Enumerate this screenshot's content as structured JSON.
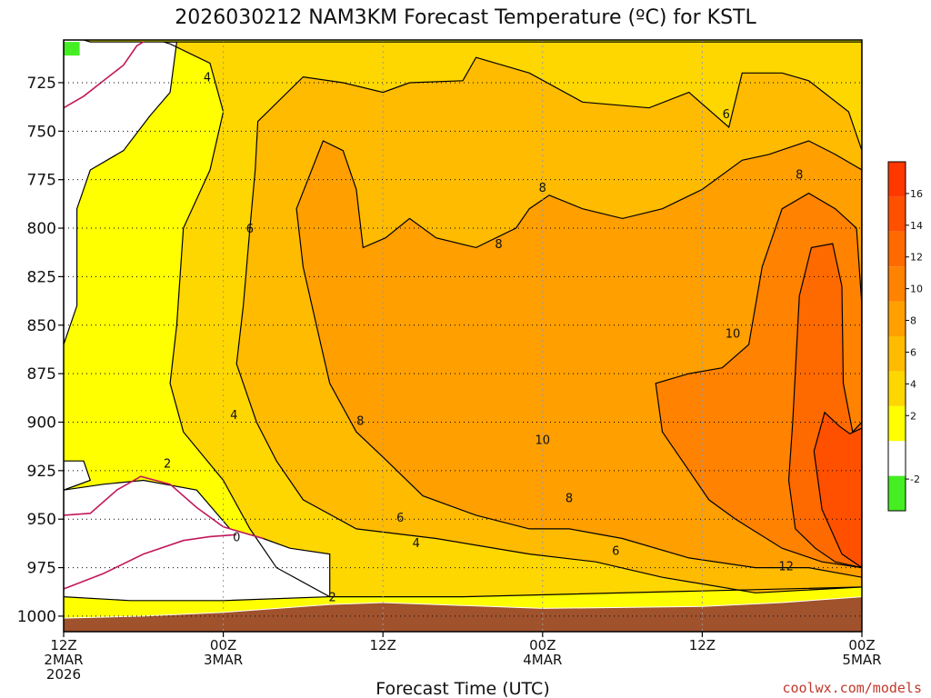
{
  "chart_data": {
    "type": "heatmap",
    "title": "2026030212 NAM3KM Forecast Temperature (ºC) for KSTL",
    "xlabel": "Forecast Time (UTC)",
    "ylabel": "",
    "x_ticks": [
      {
        "hour": 0,
        "lines": [
          "12Z",
          "2MAR",
          "2026"
        ]
      },
      {
        "hour": 12,
        "lines": [
          "00Z",
          "3MAR"
        ]
      },
      {
        "hour": 24,
        "lines": [
          "12Z"
        ]
      },
      {
        "hour": 36,
        "lines": [
          "00Z",
          "4MAR"
        ]
      },
      {
        "hour": 48,
        "lines": [
          "12Z"
        ]
      },
      {
        "hour": 60,
        "lines": [
          "00Z",
          "5MAR"
        ]
      }
    ],
    "xlim": [
      0,
      60
    ],
    "y_ticks": [
      725,
      750,
      775,
      800,
      825,
      850,
      875,
      900,
      925,
      950,
      975,
      1000
    ],
    "ylim": [
      1008,
      703
    ],
    "y_axis": "pressure (hPa), inverted",
    "grid": true,
    "colorbar": {
      "ticks": [
        -2,
        2,
        4,
        6,
        8,
        10,
        12,
        14,
        16
      ],
      "bins": [
        {
          "from": -4,
          "to": 0,
          "color": "#44ee22"
        },
        {
          "from": 0,
          "to": 2,
          "color": "#ffffff"
        },
        {
          "from": 2,
          "to": 4,
          "color": "#ffff00"
        },
        {
          "from": 4,
          "to": 6,
          "color": "#ffd700"
        },
        {
          "from": 6,
          "to": 8,
          "color": "#ffbb00"
        },
        {
          "from": 8,
          "to": 10,
          "color": "#ff9f00"
        },
        {
          "from": 10,
          "to": 12,
          "color": "#ff8200"
        },
        {
          "from": 12,
          "to": 14,
          "color": "#ff6a00"
        },
        {
          "from": 14,
          "to": 16,
          "color": "#ff5000"
        },
        {
          "from": 16,
          "to": 18,
          "color": "#ff3800"
        }
      ]
    },
    "contour_labels": [
      {
        "text": "4",
        "hour": 10.8,
        "p": 722
      },
      {
        "text": "6",
        "hour": 49.8,
        "p": 741
      },
      {
        "text": "8",
        "hour": 36.0,
        "p": 779
      },
      {
        "text": "8",
        "hour": 55.3,
        "p": 772
      },
      {
        "text": "6",
        "hour": 14.0,
        "p": 800
      },
      {
        "text": "8",
        "hour": 32.7,
        "p": 808
      },
      {
        "text": "10",
        "hour": 50.3,
        "p": 854
      },
      {
        "text": "8",
        "hour": 22.3,
        "p": 899
      },
      {
        "text": "4",
        "hour": 12.8,
        "p": 896
      },
      {
        "text": "10",
        "hour": 36.0,
        "p": 909
      },
      {
        "text": "2",
        "hour": 7.8,
        "p": 921
      },
      {
        "text": "8",
        "hour": 38.0,
        "p": 939
      },
      {
        "text": "6",
        "hour": 25.3,
        "p": 949
      },
      {
        "text": "4",
        "hour": 26.5,
        "p": 962
      },
      {
        "text": "0",
        "hour": 13.0,
        "p": 959
      },
      {
        "text": "6",
        "hour": 41.5,
        "p": 966
      },
      {
        "text": "12",
        "hour": 54.3,
        "p": 974
      },
      {
        "text": "2",
        "hour": 20.2,
        "p": 990
      }
    ],
    "regions": [
      {
        "value": 4,
        "color": "#ffd700",
        "poly": [
          [
            7.5,
            704
          ],
          [
            32,
            704
          ],
          [
            60,
            704
          ],
          [
            60,
            985
          ],
          [
            30,
            990
          ],
          [
            20,
            990
          ],
          [
            16,
            975
          ],
          [
            14,
            955
          ],
          [
            12,
            930
          ],
          [
            9,
            905
          ],
          [
            8,
            880
          ],
          [
            8.5,
            850
          ],
          [
            9,
            800
          ],
          [
            11,
            770
          ],
          [
            12,
            740
          ],
          [
            11,
            715
          ],
          [
            8,
            705
          ]
        ]
      },
      {
        "value": 6,
        "color": "#ffbb00",
        "poly": [
          [
            14.6,
            745
          ],
          [
            18,
            722
          ],
          [
            21,
            725
          ],
          [
            24,
            730
          ],
          [
            26,
            725
          ],
          [
            30,
            724
          ],
          [
            31,
            712
          ],
          [
            35,
            720
          ],
          [
            39,
            735
          ],
          [
            44,
            738
          ],
          [
            47,
            730
          ],
          [
            50,
            748
          ],
          [
            51,
            720
          ],
          [
            54,
            720
          ],
          [
            56,
            724
          ],
          [
            59,
            740
          ],
          [
            60,
            760
          ],
          [
            60,
            985
          ],
          [
            52,
            988
          ],
          [
            45,
            980
          ],
          [
            40,
            972
          ],
          [
            35,
            968
          ],
          [
            28,
            960
          ],
          [
            22,
            955
          ],
          [
            18,
            940
          ],
          [
            16,
            920
          ],
          [
            14.5,
            900
          ],
          [
            13,
            870
          ],
          [
            13.5,
            840
          ],
          [
            14,
            800
          ],
          [
            14.4,
            770
          ]
        ]
      },
      {
        "value": 8,
        "color": "#ff9f00",
        "poly": [
          [
            17.5,
            790
          ],
          [
            19.5,
            755
          ],
          [
            21,
            760
          ],
          [
            22,
            780
          ],
          [
            22.5,
            810
          ],
          [
            24.2,
            805
          ],
          [
            26,
            795
          ],
          [
            28,
            805
          ],
          [
            31,
            810
          ],
          [
            34,
            800
          ],
          [
            35,
            790
          ],
          [
            36.5,
            783
          ],
          [
            39,
            790
          ],
          [
            42,
            795
          ],
          [
            45,
            790
          ],
          [
            48,
            780
          ],
          [
            51,
            765
          ],
          [
            53,
            762
          ],
          [
            56,
            755
          ],
          [
            58,
            762
          ],
          [
            60,
            770
          ],
          [
            60,
            980
          ],
          [
            56,
            975
          ],
          [
            52,
            975
          ],
          [
            47,
            970
          ],
          [
            42,
            960
          ],
          [
            38,
            955
          ],
          [
            35,
            955
          ],
          [
            31,
            948
          ],
          [
            27,
            938
          ],
          [
            24,
            918
          ],
          [
            22,
            905
          ],
          [
            20,
            880
          ],
          [
            19,
            850
          ],
          [
            18,
            820
          ]
        ]
      },
      {
        "value": 10,
        "color": "#ff8200",
        "poly": [
          [
            51.5,
            860
          ],
          [
            52.5,
            820
          ],
          [
            54,
            790
          ],
          [
            56,
            782
          ],
          [
            58,
            790
          ],
          [
            59.6,
            800
          ],
          [
            60,
            840
          ],
          [
            60,
            975
          ],
          [
            57,
            972
          ],
          [
            54,
            965
          ],
          [
            50.5,
            950
          ],
          [
            48.5,
            940
          ],
          [
            47,
            925
          ],
          [
            45,
            905
          ],
          [
            44.5,
            880
          ],
          [
            47,
            875
          ],
          [
            49.5,
            872
          ]
        ]
      },
      {
        "value": 12,
        "color": "#ff6a00",
        "poly": [
          [
            55.3,
            835
          ],
          [
            56.2,
            810
          ],
          [
            57.8,
            808
          ],
          [
            58.5,
            830
          ],
          [
            58.6,
            880
          ],
          [
            59.3,
            905
          ],
          [
            60,
            900
          ],
          [
            60,
            975
          ],
          [
            58,
            972
          ],
          [
            56.5,
            965
          ],
          [
            55,
            955
          ],
          [
            54.5,
            930
          ],
          [
            54.8,
            900
          ]
        ]
      },
      {
        "value": 14,
        "color": "#ff5000",
        "poly": [
          [
            56.4,
            915
          ],
          [
            57.2,
            895
          ],
          [
            58.3,
            902
          ],
          [
            59.1,
            906
          ],
          [
            60,
            903
          ],
          [
            60,
            975
          ],
          [
            58.5,
            968
          ],
          [
            57,
            945
          ]
        ]
      }
    ],
    "cold_regions": [
      {
        "value": 0,
        "color": "#ffffff",
        "poly": [
          [
            0,
            935
          ],
          [
            3,
            932
          ],
          [
            6,
            930
          ],
          [
            10,
            935
          ],
          [
            12.5,
            955
          ],
          [
            15,
            960
          ],
          [
            17,
            965
          ],
          [
            20,
            968
          ],
          [
            20,
            990
          ],
          [
            12,
            992
          ],
          [
            5,
            992
          ],
          [
            0,
            990
          ]
        ]
      },
      {
        "value": 0,
        "color": "#ffffff",
        "poly": [
          [
            0,
            700
          ],
          [
            2,
            704
          ],
          [
            8.5,
            704
          ],
          [
            8,
            730
          ],
          [
            6.5,
            742
          ],
          [
            4.5,
            760
          ],
          [
            2,
            770
          ],
          [
            1,
            790
          ],
          [
            1,
            840
          ],
          [
            0,
            860
          ]
        ]
      },
      {
        "value": 0,
        "color": "#ffffff",
        "poly": [
          [
            0,
            920
          ],
          [
            1.5,
            920
          ],
          [
            2,
            930
          ],
          [
            0,
            935
          ]
        ]
      }
    ],
    "cold_patches": [
      {
        "value": -2,
        "color": "#44ee22",
        "poly": [
          [
            0,
            704
          ],
          [
            1.2,
            704
          ],
          [
            1.2,
            711
          ],
          [
            0,
            711
          ]
        ]
      }
    ],
    "zero_isotherm_paths": [
      [
        [
          0,
          738
        ],
        [
          1.5,
          732
        ],
        [
          3,
          724
        ],
        [
          4.5,
          716
        ],
        [
          5.5,
          706
        ],
        [
          6,
          704
        ]
      ],
      [
        [
          0,
          948
        ],
        [
          2,
          947
        ],
        [
          4,
          935
        ],
        [
          5.8,
          928
        ],
        [
          8,
          932
        ],
        [
          10,
          944
        ],
        [
          12,
          954
        ],
        [
          15,
          960
        ]
      ],
      [
        [
          0,
          986
        ],
        [
          3,
          978
        ],
        [
          6,
          968
        ],
        [
          9,
          961
        ],
        [
          11,
          959
        ],
        [
          13,
          958
        ]
      ]
    ],
    "terrain": {
      "color": "#a0522d",
      "surface_pressure": [
        [
          0,
          1001
        ],
        [
          6,
          1000
        ],
        [
          12,
          998
        ],
        [
          20,
          994
        ],
        [
          24,
          993
        ],
        [
          36,
          996
        ],
        [
          48,
          995
        ],
        [
          54,
          993
        ],
        [
          60,
          990
        ]
      ]
    }
  },
  "credit": "coolwx.com/models"
}
